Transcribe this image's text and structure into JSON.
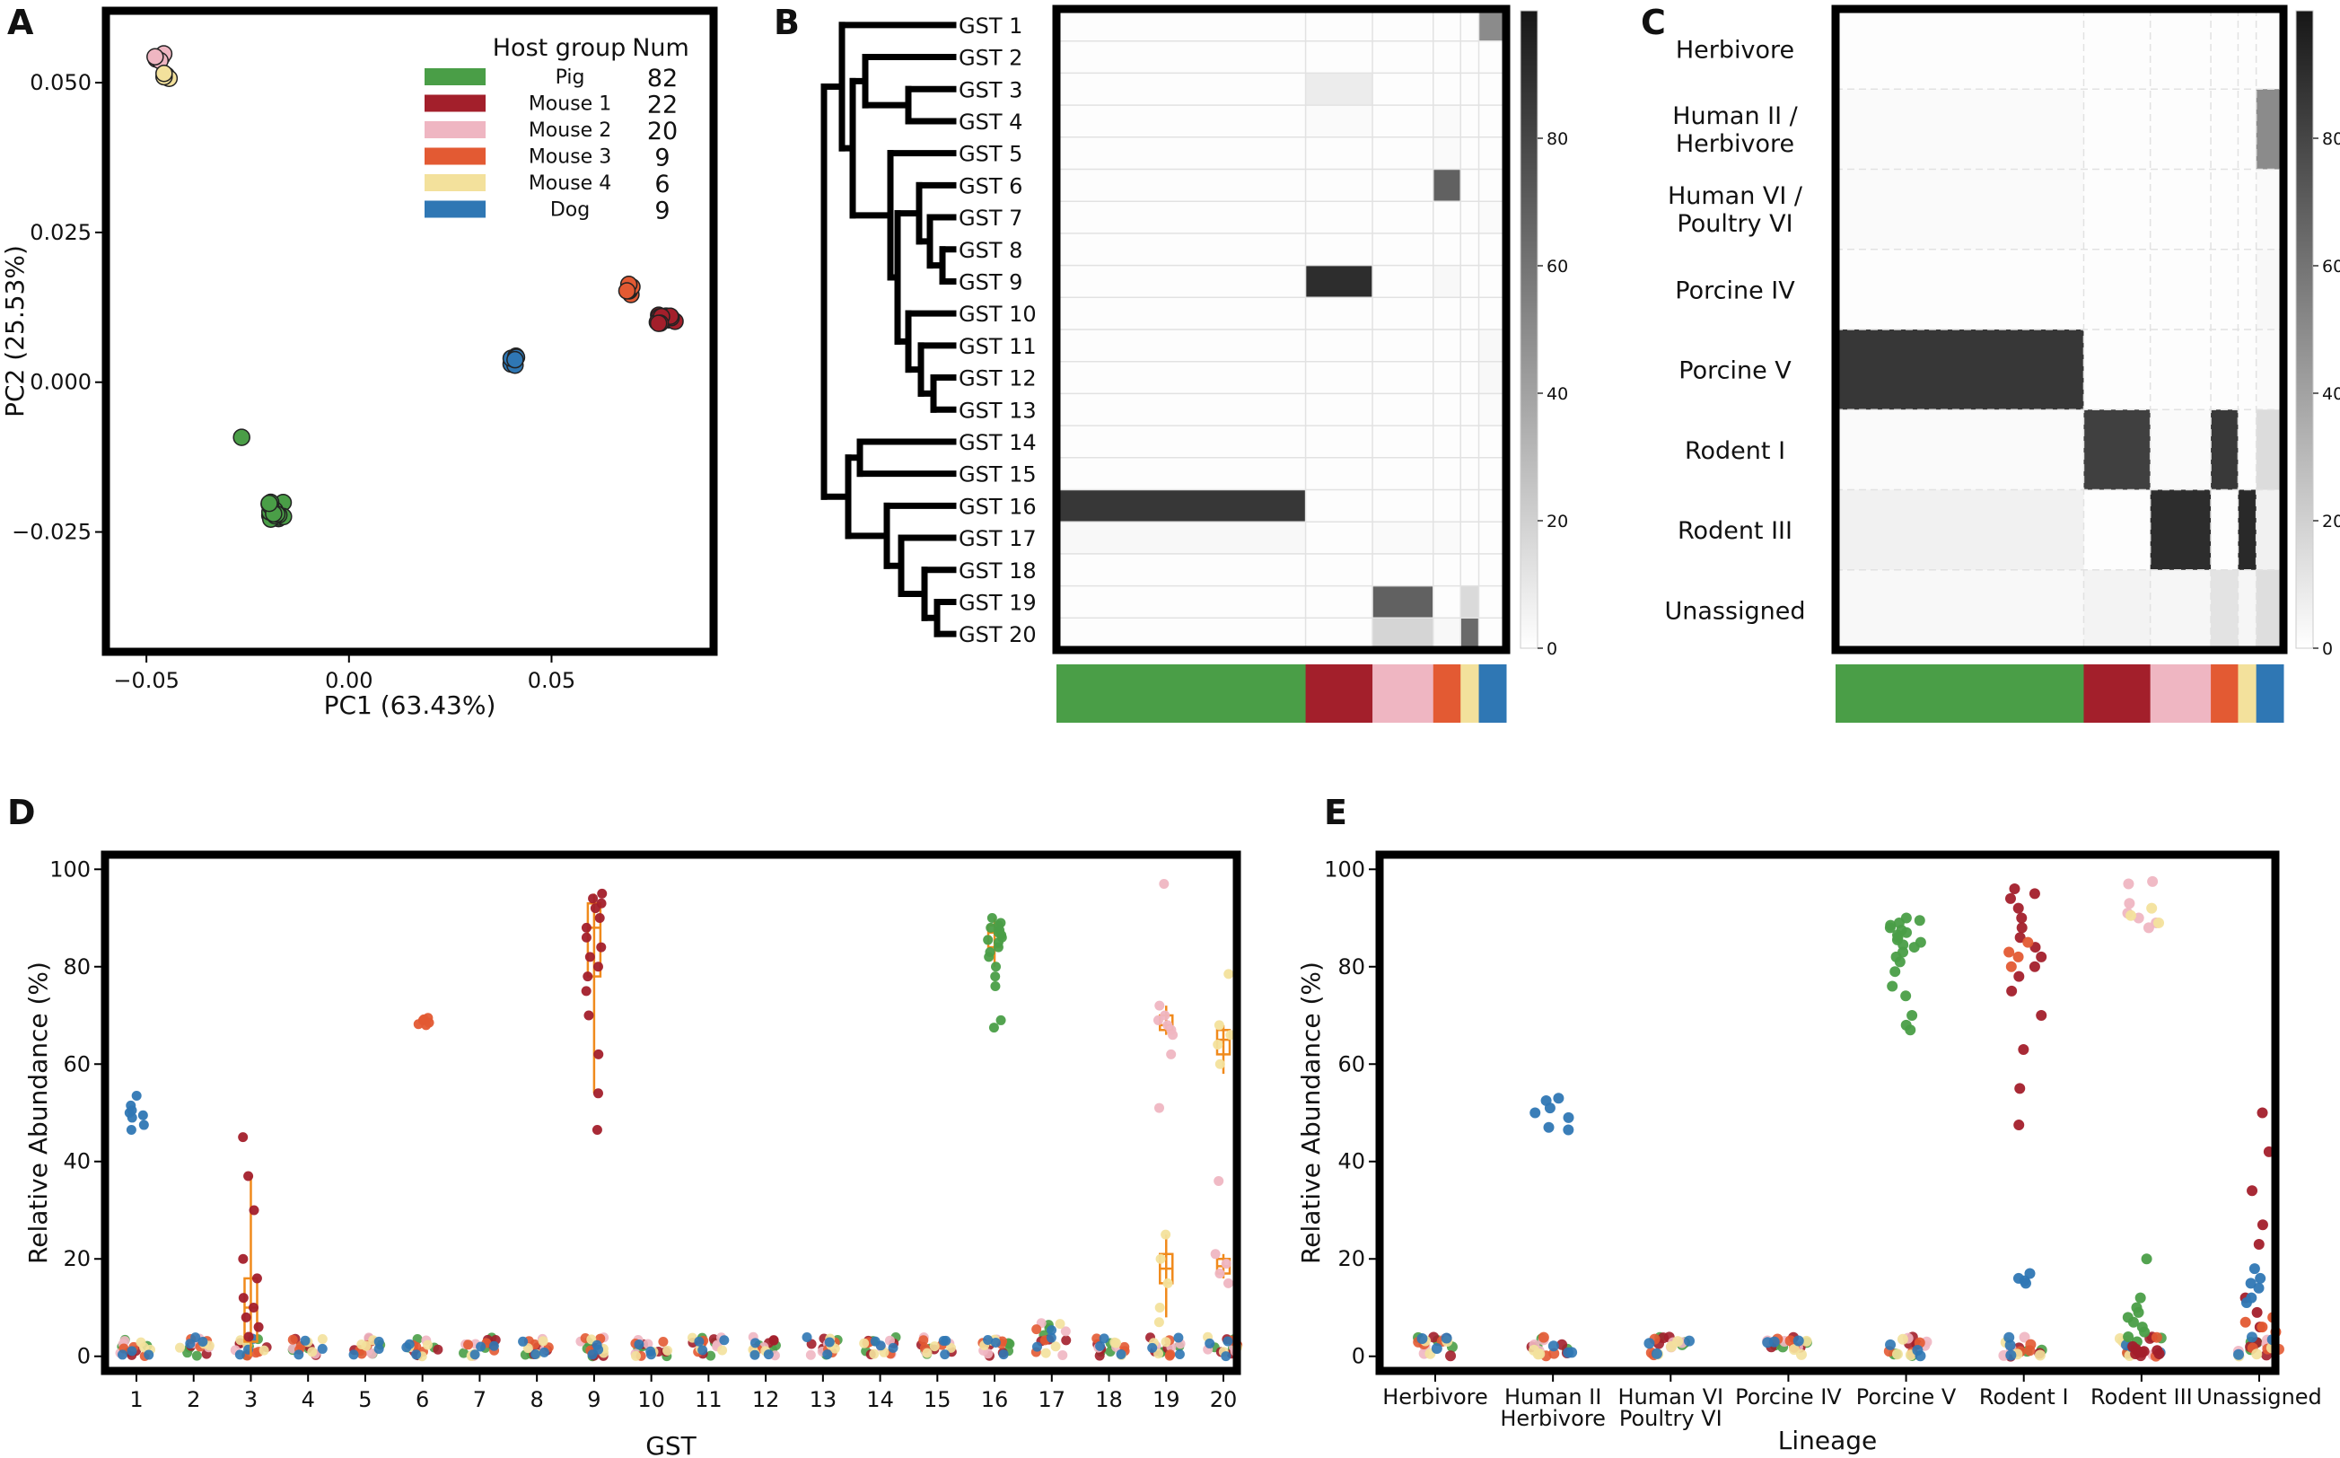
{
  "chart_data": [
    {
      "panel": "A",
      "type": "scatter",
      "xlabel": "PC1 (63.43%)",
      "ylabel": "PC2 (25.53%)",
      "xlim": [
        -0.06,
        0.09
      ],
      "ylim": [
        -0.045,
        0.062
      ],
      "xticks": [
        -0.05,
        0.0,
        0.05
      ],
      "xtick_labels": [
        "−0.05",
        "0.00",
        "0.05"
      ],
      "yticks": [
        0.05,
        0.025,
        0.0,
        -0.025
      ],
      "ytick_labels": [
        "0.050",
        "0.025",
        "0.000",
        "−0.025"
      ],
      "legend": {
        "title_group": "Host group",
        "title_num": "Num",
        "position": "top-right",
        "entries": [
          {
            "name": "Pig",
            "num": "82",
            "color": "#4a9e47"
          },
          {
            "name": "Mouse 1",
            "num": "22",
            "color": "#a31f2b"
          },
          {
            "name": "Mouse 2",
            "num": "20",
            "color": "#efb6c2"
          },
          {
            "name": "Mouse 3",
            "num": "9",
            "color": "#e35a33"
          },
          {
            "name": "Mouse 4",
            "num": "6",
            "color": "#f3e19c"
          },
          {
            "name": "Dog",
            "num": "9",
            "color": "#2f77b4"
          }
        ]
      },
      "clusters": [
        {
          "group": "Pig",
          "color": "#4a9e47",
          "center": [
            -0.018,
            -0.0215
          ],
          "spread": [
            0.002,
            0.0015
          ],
          "n": 22
        },
        {
          "group": "Pig",
          "color": "#4a9e47",
          "center": [
            -0.0265,
            -0.0092
          ],
          "spread": [
            0,
            0
          ],
          "n": 1
        },
        {
          "group": "Mouse 2",
          "color": "#efb6c2",
          "center": [
            -0.0465,
            0.0545
          ],
          "spread": [
            0.0015,
            0.001
          ],
          "n": 6
        },
        {
          "group": "Mouse 4",
          "color": "#f3e19c",
          "center": [
            -0.0455,
            0.051
          ],
          "spread": [
            0.0012,
            0.0008
          ],
          "n": 4
        },
        {
          "group": "Dog",
          "color": "#2f77b4",
          "center": [
            0.0405,
            0.0035
          ],
          "spread": [
            0.001,
            0.0009
          ],
          "n": 7
        },
        {
          "group": "Mouse 3",
          "color": "#e35a33",
          "center": [
            0.0695,
            0.0155
          ],
          "spread": [
            0.0009,
            0.0009
          ],
          "n": 6
        },
        {
          "group": "Mouse 1",
          "color": "#a31f2b",
          "center": [
            0.0785,
            0.0105
          ],
          "spread": [
            0.0025,
            0.0007
          ],
          "n": 12
        }
      ]
    },
    {
      "panel": "B",
      "type": "heatmap",
      "rows": [
        "GST 1",
        "GST 2",
        "GST 3",
        "GST 4",
        "GST 5",
        "GST 6",
        "GST 7",
        "GST 8",
        "GST 9",
        "GST 10",
        "GST 11",
        "GST 12",
        "GST 13",
        "GST 14",
        "GST 15",
        "GST 16",
        "GST 17",
        "GST 18",
        "GST 19",
        "GST 20"
      ],
      "column_groups": [
        {
          "name": "Pig",
          "n": 82,
          "color": "#4a9e47"
        },
        {
          "name": "Mouse 1",
          "n": 22,
          "color": "#a31f2b"
        },
        {
          "name": "Mouse 2",
          "n": 20,
          "color": "#efb6c2"
        },
        {
          "name": "Mouse 3",
          "n": 9,
          "color": "#e35a33"
        },
        {
          "name": "Mouse 4",
          "n": 6,
          "color": "#f3e19c"
        },
        {
          "name": "Dog",
          "n": 9,
          "color": "#2f77b4"
        }
      ],
      "values_by_group": [
        [
          1,
          1,
          1,
          1,
          1,
          50
        ],
        [
          1,
          1,
          1,
          1,
          1,
          1
        ],
        [
          1,
          8,
          1,
          1,
          1,
          1
        ],
        [
          1,
          2,
          1,
          2,
          1,
          1
        ],
        [
          1,
          1,
          1,
          2,
          1,
          1
        ],
        [
          1,
          1,
          1,
          68,
          1,
          1
        ],
        [
          1,
          1,
          1,
          1,
          1,
          2
        ],
        [
          1,
          1,
          1,
          1,
          1,
          1
        ],
        [
          1,
          90,
          1,
          3,
          1,
          1
        ],
        [
          1,
          1,
          1,
          1,
          1,
          1
        ],
        [
          1,
          1,
          1,
          1,
          1,
          3
        ],
        [
          1,
          1,
          1,
          1,
          1,
          3
        ],
        [
          1,
          1,
          1,
          1,
          1,
          2
        ],
        [
          1,
          1,
          1,
          1,
          1,
          1
        ],
        [
          1,
          1,
          1,
          1,
          1,
          1
        ],
        [
          86,
          1,
          1,
          1,
          1,
          1
        ],
        [
          3,
          1,
          2,
          2,
          1,
          1
        ],
        [
          1,
          1,
          1,
          1,
          1,
          1
        ],
        [
          1,
          1,
          68,
          1,
          16,
          1
        ],
        [
          1,
          1,
          18,
          3,
          64,
          1
        ]
      ],
      "colorbar": {
        "range": [
          0,
          100
        ],
        "ticks": [
          0,
          20,
          40,
          60,
          80
        ],
        "tick_labels": [
          "0",
          "20",
          "40",
          "60",
          "80"
        ]
      }
    },
    {
      "panel": "C",
      "type": "heatmap",
      "rows": [
        "Herbivore",
        "Human II /|Herbivore",
        "Human VI /|Poultry VI",
        "Porcine IV",
        "Porcine V",
        "Rodent I",
        "Rodent III",
        "Unassigned"
      ],
      "column_groups": [
        {
          "name": "Pig",
          "n": 82,
          "color": "#4a9e47"
        },
        {
          "name": "Mouse 1",
          "n": 22,
          "color": "#a31f2b"
        },
        {
          "name": "Mouse 2",
          "n": 20,
          "color": "#efb6c2"
        },
        {
          "name": "Mouse 3",
          "n": 9,
          "color": "#e35a33"
        },
        {
          "name": "Mouse 4",
          "n": 6,
          "color": "#f3e19c"
        },
        {
          "name": "Dog",
          "n": 9,
          "color": "#2f77b4"
        }
      ],
      "values_by_group": [
        [
          1,
          1,
          1,
          1,
          1,
          1
        ],
        [
          2,
          1,
          1,
          1,
          1,
          50
        ],
        [
          2,
          1,
          1,
          1,
          1,
          2
        ],
        [
          1,
          1,
          1,
          1,
          1,
          3
        ],
        [
          86,
          1,
          1,
          1,
          1,
          2
        ],
        [
          2,
          82,
          2,
          85,
          1,
          15
        ],
        [
          6,
          1,
          90,
          1,
          92,
          6
        ],
        [
          3,
          5,
          4,
          12,
          4,
          14
        ]
      ],
      "colorbar": {
        "range": [
          0,
          100
        ],
        "ticks": [
          0,
          20,
          40,
          60,
          80
        ],
        "tick_labels": [
          "0",
          "20",
          "40",
          "60",
          "80"
        ]
      }
    },
    {
      "panel": "D",
      "type": "scatter",
      "subtype": "strip-box",
      "xlabel": "GST",
      "ylabel": "Relative Abundance (%)",
      "categories": [
        "1",
        "2",
        "3",
        "4",
        "5",
        "6",
        "7",
        "8",
        "9",
        "10",
        "11",
        "12",
        "13",
        "14",
        "15",
        "16",
        "17",
        "18",
        "19",
        "20"
      ],
      "ylim": [
        -3,
        103
      ],
      "yticks": [
        0,
        20,
        40,
        60,
        80,
        100
      ],
      "ytick_labels": [
        "0",
        "20",
        "40",
        "60",
        "80",
        "100"
      ],
      "baseline_range": [
        0,
        4
      ],
      "highlights": [
        {
          "cat": 1,
          "group": "Dog",
          "color": "#2f77b4",
          "values": [
            46.5,
            47.5,
            49,
            49.5,
            50,
            50.5,
            51.5,
            53.5
          ]
        },
        {
          "cat": 3,
          "group": "Mouse 1",
          "color": "#a31f2b",
          "values": [
            45,
            37,
            30,
            20,
            16,
            12,
            10,
            8,
            6,
            4
          ]
        },
        {
          "cat": 6,
          "group": "Mouse 3",
          "color": "#e35a33",
          "values": [
            68,
            68.5,
            69,
            69.5,
            68.2,
            69.2
          ]
        },
        {
          "cat": 9,
          "group": "Mouse 1",
          "color": "#a31f2b",
          "values": [
            95,
            94,
            93,
            92,
            90,
            88,
            86,
            84,
            82,
            80,
            78,
            75,
            70,
            62,
            54,
            46.5
          ]
        },
        {
          "cat": 16,
          "group": "Pig",
          "color": "#4a9e47",
          "values": [
            90,
            89,
            88.5,
            88,
            87.5,
            87,
            86.5,
            86,
            85.5,
            85,
            84,
            83,
            82,
            80,
            78,
            76,
            69,
            67.5
          ]
        },
        {
          "cat": 19,
          "group": "Mouse 2",
          "color": "#efb6c2",
          "values": [
            97,
            72,
            70,
            69,
            68,
            67,
            66,
            62,
            51
          ]
        },
        {
          "cat": 19,
          "group": "Mouse 4",
          "color": "#f3e19c",
          "values": [
            25,
            20,
            15,
            10,
            7
          ]
        },
        {
          "cat": 20,
          "group": "Mouse 4",
          "color": "#f3e19c",
          "values": [
            78.5,
            68,
            66,
            64,
            60
          ]
        },
        {
          "cat": 20,
          "group": "Mouse 2",
          "color": "#efb6c2",
          "values": [
            36,
            21,
            19,
            17,
            15
          ]
        }
      ],
      "boxes": [
        {
          "cat": 3,
          "q1": 3,
          "median": 10,
          "q3": 16,
          "lo": 0,
          "hi": 37
        },
        {
          "cat": 9,
          "q1": 78,
          "median": 88,
          "q3": 93,
          "lo": 54,
          "hi": 95
        },
        {
          "cat": 16,
          "q1": 84,
          "median": 87,
          "q3": 88.5,
          "lo": 80,
          "hi": 90
        },
        {
          "cat": 19,
          "q1": 15,
          "median": 18,
          "q3": 21,
          "lo": 8,
          "hi": 25
        },
        {
          "cat": 20,
          "q1": 62,
          "median": 65,
          "q3": 67,
          "lo": 58,
          "hi": 68
        },
        {
          "cat": 19,
          "q1": 67,
          "median": 68,
          "q3": 70,
          "lo": 66,
          "hi": 72
        },
        {
          "cat": 20,
          "q1": 17,
          "median": 18.5,
          "q3": 20,
          "lo": 16,
          "hi": 21
        }
      ]
    },
    {
      "panel": "E",
      "type": "scatter",
      "subtype": "strip",
      "xlabel": "Lineage",
      "ylabel": "Relative Abundance (%)",
      "categories": [
        "Herbivore",
        "Human II|Herbivore",
        "Human VI|Poultry VI",
        "Porcine IV",
        "Porcine V",
        "Rodent I",
        "Rodent III",
        "Unassigned"
      ],
      "ylim": [
        -3,
        103
      ],
      "yticks": [
        0,
        20,
        40,
        60,
        80,
        100
      ],
      "ytick_labels": [
        "0",
        "20",
        "40",
        "60",
        "80",
        "100"
      ],
      "highlights": [
        {
          "cat": 2,
          "group": "Dog",
          "color": "#2f77b4",
          "values": [
            46.5,
            47,
            49,
            50,
            51,
            52.5,
            53
          ]
        },
        {
          "cat": 5,
          "group": "Pig",
          "color": "#4a9e47",
          "values": [
            90,
            89.5,
            89,
            88.5,
            88,
            87.5,
            87,
            86.5,
            86,
            85.5,
            85,
            84.5,
            84,
            83,
            82,
            81,
            79,
            76,
            74,
            70,
            68,
            67
          ]
        },
        {
          "cat": 6,
          "group": "Mouse 1",
          "color": "#a31f2b",
          "values": [
            96,
            95,
            94,
            92,
            90,
            88,
            86,
            84,
            82,
            80,
            78,
            75,
            70,
            63,
            55,
            47.5
          ]
        },
        {
          "cat": 6,
          "group": "Mouse 3",
          "color": "#e35a33",
          "values": [
            85,
            83,
            82,
            80
          ]
        },
        {
          "cat": 6,
          "group": "Dog",
          "color": "#2f77b4",
          "values": [
            17,
            16,
            15.5,
            15
          ]
        },
        {
          "cat": 7,
          "group": "Mouse 2",
          "color": "#efb6c2",
          "values": [
            97.5,
            97,
            93,
            91,
            90,
            89,
            88
          ]
        },
        {
          "cat": 7,
          "group": "Mouse 4",
          "color": "#f3e19c",
          "values": [
            92,
            90.5,
            89
          ]
        },
        {
          "cat": 7,
          "group": "Pig",
          "color": "#4a9e47",
          "values": [
            20,
            12,
            10,
            9,
            8,
            7,
            6,
            5,
            4,
            3
          ]
        },
        {
          "cat": 7,
          "group": "Mouse 1",
          "color": "#a31f2b",
          "values": [
            2,
            1.5,
            1,
            1,
            0.5,
            0.5,
            1.2,
            0.8
          ]
        },
        {
          "cat": 8,
          "group": "Mouse 1",
          "color": "#a31f2b",
          "values": [
            50,
            42,
            34,
            27,
            23,
            12,
            9,
            6
          ]
        },
        {
          "cat": 8,
          "group": "Dog",
          "color": "#2f77b4",
          "values": [
            18,
            16,
            15,
            14,
            12,
            11
          ]
        },
        {
          "cat": 8,
          "group": "Mouse 3",
          "color": "#e35a33",
          "values": [
            8,
            7,
            6,
            5
          ]
        }
      ]
    }
  ],
  "panels": {
    "a": {
      "letter": "A"
    },
    "b": {
      "letter": "B"
    },
    "c": {
      "letter": "C"
    },
    "d": {
      "letter": "D"
    },
    "e": {
      "letter": "E"
    }
  }
}
